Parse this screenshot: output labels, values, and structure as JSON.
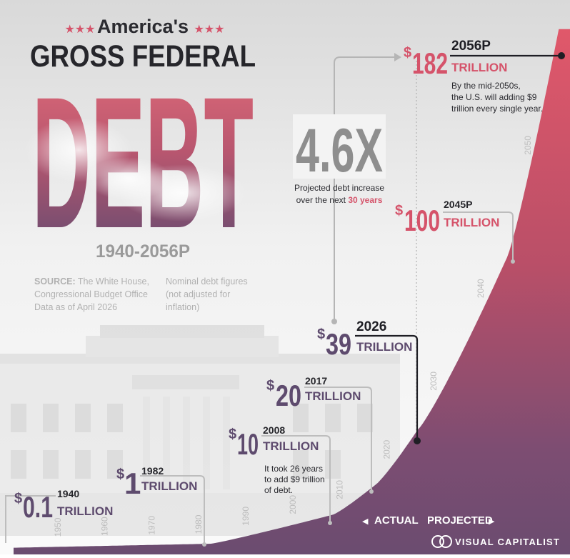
{
  "header": {
    "stars_left": "★★★",
    "stars_right": "★★★",
    "subtitle": "America's",
    "title": "GROSS FEDERAL",
    "big_word": "DEBT",
    "range": "1940-2056P"
  },
  "source": {
    "label": "SOURCE:",
    "text": " The White House,",
    "line2": "Congressional Budget Office",
    "line3": "Data as of April 2026",
    "note1": "Nominal debt figures",
    "note2": "(not adjusted for",
    "note3": "inflation)"
  },
  "multiplier": {
    "value": "4.6X",
    "caption1": "Projected debt increase",
    "caption2_prefix": "over the next ",
    "caption2_highlight": "30 years"
  },
  "callouts": [
    {
      "dollar": "$",
      "amount": "0.1",
      "year": "1940",
      "unit": "TRILLION"
    },
    {
      "dollar": "$",
      "amount": "1",
      "year": "1982",
      "unit": "TRILLION"
    },
    {
      "dollar": "$",
      "amount": "10",
      "year": "2008",
      "unit": "TRILLION",
      "note1": "It took 26 years",
      "note2": "to add $9 trillion",
      "note3": "of debt."
    },
    {
      "dollar": "$",
      "amount": "20",
      "year": "2017",
      "unit": "TRILLION"
    },
    {
      "dollar": "$",
      "amount": "39",
      "year": "2026",
      "unit": "TRILLION"
    },
    {
      "dollar": "$",
      "amount": "100",
      "year": "2045P",
      "unit": "TRILLION"
    },
    {
      "dollar": "$",
      "amount": "182",
      "year": "2056P",
      "unit": "TRILLION",
      "note1": "By the mid-2050s,",
      "note2": "the U.S. will adding $9",
      "note3": "trillion every single year."
    }
  ],
  "legend": {
    "actual": "ACTUAL",
    "projected": "PROJECTED",
    "left_arrow": "◀",
    "right_arrow": "▶"
  },
  "brand": "VISUAL CAPITALIST",
  "colors": {
    "pink": "#d5536a",
    "purple": "#5e4b6e",
    "dark": "#1e1e24",
    "gray": "#8e8e8e",
    "lightgray": "#b9b9b9"
  },
  "chart_data": {
    "type": "area",
    "title": "GROSS FEDERAL DEBT",
    "subtitle": "1940-2056P",
    "ylabel": "",
    "xlabel": "",
    "x_ticks": [
      "1950",
      "1960",
      "1970",
      "1980",
      "1990",
      "2000",
      "2010",
      "2020",
      "2030",
      "2040",
      "2050"
    ],
    "series": [
      {
        "x": [
          1940,
          1982,
          2008,
          2017,
          2026,
          2045,
          2056
        ],
        "values": [
          0.1,
          1,
          10,
          20,
          39,
          100,
          182
        ]
      }
    ],
    "unit": "TRILLION",
    "actual_until": 2026,
    "projected_from": 2026
  }
}
